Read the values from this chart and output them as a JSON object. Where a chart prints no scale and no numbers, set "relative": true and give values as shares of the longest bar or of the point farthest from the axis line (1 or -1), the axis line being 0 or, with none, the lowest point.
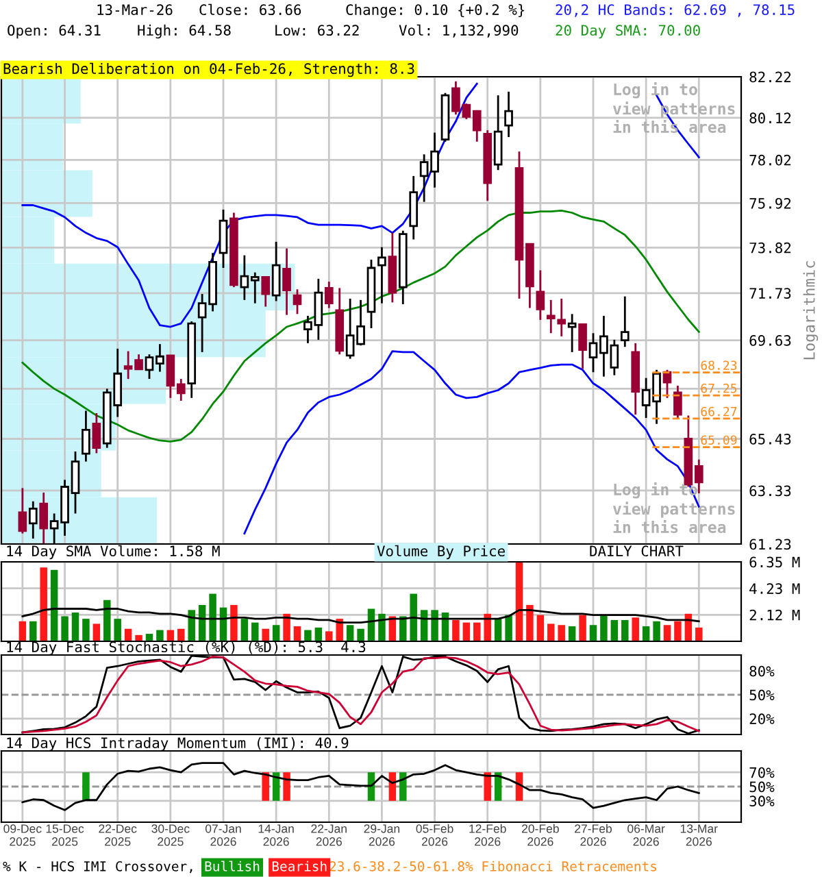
{
  "chart_data": [
    {
      "type": "candlestick",
      "title": "Bearish Deliberation on 04-Feb-26, Strength: 8.3",
      "ylabel": "Logarithmic",
      "log": true,
      "grid": true,
      "tick_labels": "y",
      "annotations": [
        "13-Mar-26",
        "Close: 63.66",
        "Change: 0.10 {+0.2 %}",
        "Open: 64.31",
        "High: 64.58",
        "Low: 63.22",
        "Vol: 1,132,990",
        "20,2 HC Bands: 62.69 , 78.15",
        "20 Day SMA: 70.00",
        "Log in to\nview patterns\nin this area",
        "Log in to\nview patterns\nin this area",
        "Volume By Price"
      ],
      "categories": [
        null,
        null,
        null,
        null,
        null,
        null,
        null,
        null,
        null,
        null,
        null,
        null,
        null,
        null,
        null,
        null,
        null,
        null,
        null,
        null,
        null,
        null,
        null,
        null,
        null,
        null,
        null,
        null,
        null,
        null,
        null,
        null,
        null,
        null,
        null,
        null,
        null,
        null,
        null,
        null,
        null,
        null,
        null,
        null,
        null,
        null,
        null,
        null,
        null,
        null,
        null,
        null,
        null,
        null,
        null,
        null,
        null,
        null,
        null,
        null,
        null,
        null,
        null,
        null,
        null
      ],
      "ylim": [
        61.23,
        82.22
      ],
      "yticks": [
        61.23,
        63.33,
        65.43,
        {
          "value": 67.53,
          "label": null
        },
        69.63,
        71.73,
        73.82,
        75.92,
        78.02,
        80.12,
        82.22
      ],
      "ohlc": [
        [
          62.46,
          63.43,
          61.64,
          61.74
        ],
        [
          62.03,
          62.9,
          61.44,
          62.61
        ],
        [
          62.81,
          63.25,
          61.25,
          61.84
        ],
        [
          61.84,
          62.42,
          61.25,
          62.12
        ],
        [
          62.07,
          63.76,
          61.55,
          63.48
        ],
        [
          63.23,
          64.91,
          62.42,
          64.5
        ],
        [
          64.82,
          66.6,
          64.5,
          65.8
        ],
        [
          66.06,
          66.5,
          64.84,
          65.06
        ],
        [
          65.24,
          67.53,
          65.06,
          67.37
        ],
        [
          66.83,
          69.26,
          66.34,
          68.18
        ],
        [
          68.49,
          69.15,
          67.95,
          68.39
        ],
        [
          68.76,
          69.01,
          68.34,
          68.37
        ],
        [
          68.34,
          69.01,
          67.95,
          68.88
        ],
        [
          68.61,
          69.46,
          68.26,
          68.92
        ],
        [
          68.96,
          68.96,
          67.14,
          67.66
        ],
        [
          67.72,
          67.95,
          67.02,
          67.34
        ],
        [
          67.76,
          70.46,
          67.14,
          70.37
        ],
        [
          70.64,
          71.69,
          69.11,
          71.27
        ],
        [
          71.23,
          73.57,
          70.91,
          73.15
        ],
        [
          73.57,
          75.61,
          72.88,
          75.08
        ],
        [
          75.19,
          75.46,
          72.0,
          72.1
        ],
        [
          72.0,
          73.46,
          71.42,
          72.5
        ],
        [
          72.31,
          72.67,
          71.27,
          72.46
        ],
        [
          72.46,
          72.46,
          71.12,
          71.69
        ],
        [
          71.63,
          74.09,
          71.37,
          73.0
        ],
        [
          72.84,
          73.78,
          70.75,
          71.86
        ],
        [
          71.63,
          71.9,
          70.79,
          71.23
        ],
        [
          70.11,
          70.71,
          69.5,
          70.43
        ],
        [
          70.3,
          72.38,
          69.65,
          71.75
        ],
        [
          71.96,
          72.25,
          71.06,
          71.27
        ],
        [
          70.96,
          71.96,
          69.01,
          69.17
        ],
        [
          68.96,
          71.48,
          68.82,
          69.84
        ],
        [
          69.46,
          71.42,
          69.4,
          70.24
        ],
        [
          70.89,
          73.26,
          70.16,
          72.88
        ],
        [
          73.0,
          73.84,
          71.27,
          73.36
        ],
        [
          73.4,
          74.51,
          71.31,
          71.75
        ],
        [
          72.0,
          74.61,
          71.23,
          74.45
        ],
        [
          74.83,
          77.23,
          74.2,
          76.44
        ],
        [
          77.23,
          78.29,
          75.98,
          77.91
        ],
        [
          77.45,
          79.37,
          76.67,
          78.43
        ],
        [
          79.03,
          81.38,
          78.92,
          81.26
        ],
        [
          81.62,
          81.98,
          80.28,
          80.46
        ],
        [
          80.77,
          80.84,
          80.05,
          80.17
        ],
        [
          80.46,
          80.5,
          78.92,
          79.49
        ],
        [
          79.31,
          79.49,
          76.03,
          76.89
        ],
        [
          77.79,
          81.26,
          77.52,
          79.42
        ],
        [
          79.73,
          81.45,
          79.15,
          80.46
        ],
        [
          77.61,
          78.43,
          71.48,
          73.26
        ],
        [
          73.99,
          73.99,
          71.06,
          72.04
        ],
        [
          71.79,
          72.77,
          70.53,
          71.0
        ],
        [
          70.71,
          71.42,
          69.94,
          70.6
        ],
        [
          70.53,
          71.48,
          69.8,
          70.37
        ],
        [
          70.22,
          70.79,
          69.11,
          70.37
        ],
        [
          70.33,
          70.33,
          68.38,
          69.21
        ],
        [
          68.88,
          69.94,
          68.24,
          69.5
        ],
        [
          69.07,
          70.71,
          68.05,
          69.8
        ],
        [
          68.44,
          69.65,
          68.11,
          69.4
        ],
        [
          69.63,
          71.58,
          69.34,
          69.99
        ],
        [
          69.11,
          69.5,
          66.44,
          67.41
        ],
        [
          66.83,
          67.99,
          66.3,
          67.47
        ],
        [
          66.99,
          68.34,
          66.05,
          68.18
        ],
        [
          68.24,
          68.34,
          67.14,
          67.8
        ],
        [
          67.37,
          67.66,
          66.3,
          66.44
        ],
        [
          65.43,
          66.4,
          63.48,
          63.57
        ],
        [
          64.31,
          64.58,
          63.22,
          63.66
        ]
      ],
      "series": [
        {
          "type": "line",
          "color": "#0000ff",
          "values": [
            75.82,
            75.82,
            75.67,
            75.52,
            75.25,
            74.83,
            74.51,
            74.26,
            74.13,
            73.84,
            73.05,
            72.31,
            71.06,
            70.29,
            70.22,
            70.37,
            71.06,
            72.21,
            73.36,
            74.51,
            75.1,
            75.23,
            75.29,
            75.35,
            75.35,
            75.31,
            75.25,
            74.98,
            74.89,
            74.89,
            74.89,
            74.87,
            74.85,
            74.72,
            74.83,
            74.51,
            74.93,
            75.67,
            76.66,
            77.91,
            79.04,
            79.94,
            81.14,
            81.86,
            null,
            null,
            null,
            null,
            null,
            null,
            null,
            null,
            null,
            null,
            null,
            null,
            null,
            null,
            null,
            null,
            81.26,
            80.29,
            79.49,
            78.81,
            78.15
          ]
        },
        {
          "type": "line",
          "color": "#0000ff",
          "values": [
            null,
            null,
            null,
            null,
            null,
            null,
            null,
            null,
            null,
            null,
            null,
            null,
            null,
            null,
            null,
            null,
            null,
            null,
            null,
            null,
            null,
            61.64,
            62.57,
            63.43,
            64.41,
            65.28,
            65.8,
            66.52,
            66.95,
            67.18,
            67.28,
            67.45,
            67.7,
            67.95,
            68.38,
            69.15,
            69.11,
            69.11,
            68.72,
            68.34,
            67.76,
            67.28,
            67.14,
            67.18,
            67.34,
            67.47,
            67.76,
            68.24,
            68.34,
            68.43,
            68.53,
            68.57,
            68.57,
            68.34,
            67.76,
            67.47,
            67.08,
            66.69,
            66.3,
            65.8,
            64.97,
            64.59,
            64.31,
            63.66,
            62.69
          ]
        },
        {
          "type": "line",
          "color": "#008800",
          "values": [
            68.65,
            68.24,
            67.86,
            67.53,
            67.28,
            66.99,
            66.69,
            66.4,
            66.21,
            66.02,
            65.78,
            65.62,
            65.47,
            65.36,
            65.32,
            65.39,
            65.71,
            66.25,
            66.89,
            67.41,
            68.09,
            68.72,
            69.11,
            69.5,
            69.84,
            70.22,
            70.37,
            70.54,
            70.75,
            70.81,
            70.89,
            71.0,
            71.12,
            71.31,
            71.58,
            71.75,
            71.96,
            72.21,
            72.42,
            72.63,
            72.94,
            73.46,
            73.88,
            74.3,
            74.62,
            75.04,
            75.35,
            75.46,
            75.46,
            75.52,
            75.52,
            75.56,
            75.46,
            75.25,
            75.14,
            75.04,
            74.72,
            74.41,
            73.88,
            73.26,
            72.52,
            71.79,
            71.16,
            70.54,
            70.0
          ]
        }
      ],
      "ref_lines": [
        {
          "axis": "y",
          "value": 68.23,
          "label": "68.23",
          "color": "#ff8c1a",
          "line_style": "dashed"
        },
        {
          "axis": "y",
          "value": 67.25,
          "label": "67.25",
          "color": "#ff8c1a",
          "line_style": "dashed"
        },
        {
          "axis": "y",
          "value": 66.27,
          "label": "66.27",
          "color": "#ff8c1a",
          "line_style": "dashed"
        },
        {
          "axis": "y",
          "value": 65.09,
          "label": "65.09",
          "color": "#ff8c1a",
          "line_style": "dashed"
        }
      ]
    },
    {
      "type": "bar",
      "orientation": "horizontal",
      "relative": true,
      "tick_labels": false,
      "color": "#c8f4fa",
      "categories": [
        null,
        null,
        null,
        null,
        null,
        null,
        null,
        null,
        null,
        null
      ],
      "values": [
        0.27,
        0.21,
        0.31,
        0.18,
        1,
        0.9,
        0.56,
        0.39,
        0.34,
        0.53
      ]
    },
    {
      "type": "bar",
      "title": "14 Day SMA Volume: 1.58 M",
      "grid": true,
      "tick_labels": "y",
      "annotations": [
        "DAILY CHART"
      ],
      "categories": [
        null,
        null,
        null,
        null,
        null,
        null,
        null,
        null,
        null,
        null,
        null,
        null,
        null,
        null,
        null,
        null,
        null,
        null,
        null,
        null,
        null,
        null,
        null,
        null,
        null,
        null,
        null,
        null,
        null,
        null,
        null,
        null,
        null,
        null,
        null,
        null,
        null,
        null,
        null,
        null,
        null,
        null,
        null,
        null,
        null,
        null,
        null,
        null,
        null,
        null,
        null,
        null,
        null,
        null,
        null,
        null,
        null,
        null,
        null,
        null,
        null,
        null,
        null,
        null,
        null
      ],
      "ylim": [
        0,
        6.35
      ],
      "yticks": [
        {
          "value": 2.12,
          "label": "2.12 M"
        },
        {
          "value": 4.23,
          "label": "4.23 M"
        },
        {
          "value": 6.35,
          "label": "6.35 M"
        }
      ],
      "series": [
        {
          "type": "bar",
          "values": [
            1.6,
            1.6,
            5.9,
            5.7,
            2.0,
            2.3,
            1.8,
            1.4,
            3.3,
            1.8,
            1.0,
            0.5,
            0.6,
            0.9,
            0.9,
            1.0,
            2.5,
            2.9,
            3.8,
            2.7,
            2.9,
            1.8,
            1.5,
            1.0,
            1.3,
            2.2,
            1.2,
            0.9,
            1.1,
            0.8,
            1.8,
            1.3,
            1.0,
            2.6,
            2.2,
            2.0,
            2.0,
            3.8,
            2.5,
            2.5,
            2.3,
            1.7,
            1.5,
            1.5,
            2.2,
            1.8,
            2.1,
            6.3,
            2.9,
            2.1,
            1.4,
            1.3,
            1.2,
            2.1,
            1.3,
            2.1,
            1.7,
            1.7,
            1.9,
            1.2,
            1.6,
            1.3,
            1.6,
            2.2,
            1.1
          ],
          "colors": [
            "#ff1a1a",
            "#0a8a0a",
            "#ff1a1a",
            "#0a8a0a",
            "#0a8a0a",
            "#0a8a0a",
            "#0a8a0a",
            "#ff1a1a",
            "#0a8a0a",
            "#0a8a0a",
            "#ff1a1a",
            "#ff1a1a",
            "#0a8a0a",
            "#0a8a0a",
            "#ff1a1a",
            "#ff1a1a",
            "#0a8a0a",
            "#0a8a0a",
            "#0a8a0a",
            "#0a8a0a",
            "#ff1a1a",
            "#0a8a0a",
            "#0a8a0a",
            "#ff1a1a",
            "#0a8a0a",
            "#ff1a1a",
            "#ff1a1a",
            "#0a8a0a",
            "#0a8a0a",
            "#ff1a1a",
            "#ff1a1a",
            "#0a8a0a",
            "#0a8a0a",
            "#0a8a0a",
            "#0a8a0a",
            "#ff1a1a",
            "#0a8a0a",
            "#0a8a0a",
            "#0a8a0a",
            "#0a8a0a",
            "#0a8a0a",
            "#ff1a1a",
            "#ff1a1a",
            "#ff1a1a",
            "#ff1a1a",
            "#0a8a0a",
            "#0a8a0a",
            "#ff1a1a",
            "#ff1a1a",
            "#ff1a1a",
            "#ff1a1a",
            "#ff1a1a",
            "#0a8a0a",
            "#ff1a1a",
            "#0a8a0a",
            "#0a8a0a",
            "#0a8a0a",
            "#0a8a0a",
            "#ff1a1a",
            "#0a8a0a",
            "#0a8a0a",
            "#ff1a1a",
            "#ff1a1a",
            "#ff1a1a",
            "#ff1a1a"
          ]
        },
        {
          "type": "line",
          "color": "#000000",
          "values": [
            2.0,
            2.2,
            2.5,
            2.6,
            2.6,
            2.6,
            2.6,
            2.5,
            2.6,
            2.6,
            2.4,
            2.3,
            2.3,
            2.2,
            2.2,
            2.1,
            1.9,
            1.8,
            1.8,
            1.8,
            1.9,
            1.9,
            1.8,
            1.8,
            1.9,
            1.9,
            1.8,
            1.8,
            1.7,
            1.7,
            1.5,
            1.5,
            1.5,
            1.6,
            1.7,
            1.8,
            1.8,
            1.9,
            1.8,
            1.8,
            1.8,
            1.8,
            1.8,
            1.8,
            1.8,
            1.8,
            2.0,
            2.5,
            2.5,
            2.4,
            2.3,
            2.2,
            2.2,
            2.2,
            2.1,
            2.1,
            2.1,
            2.1,
            2.1,
            2.0,
            1.9,
            1.7,
            1.7,
            1.7,
            1.6
          ]
        }
      ]
    },
    {
      "type": "line",
      "title": "14 Day Fast Stochastic (%K) (%D): 5.3  4.3",
      "grid": true,
      "tick_labels": "y",
      "categories": [
        null,
        null,
        null,
        null,
        null,
        null,
        null,
        null,
        null,
        null,
        null,
        null,
        null,
        null,
        null,
        null,
        null,
        null,
        null,
        null,
        null,
        null,
        null,
        null,
        null,
        null,
        null,
        null,
        null,
        null,
        null,
        null,
        null,
        null,
        null,
        null,
        null,
        null,
        null,
        null,
        null,
        null,
        null,
        null,
        null,
        null,
        null,
        null,
        null,
        null,
        null,
        null,
        null,
        null,
        null,
        null,
        null,
        null,
        null,
        null,
        null,
        null,
        null,
        null,
        null
      ],
      "ylim": [
        0,
        100
      ],
      "yticks": [
        {
          "value": 20,
          "label": "20%"
        },
        {
          "value": 50,
          "label": "50%"
        },
        {
          "value": 80,
          "label": "80%"
        }
      ],
      "ref_lines": [
        {
          "axis": "y",
          "value": 50,
          "color": "#999999",
          "line_style": "dashed"
        }
      ],
      "series": [
        {
          "color": "#000000",
          "values": [
            2.6,
            4.5,
            6.5,
            7,
            9,
            15,
            23,
            35,
            84,
            86,
            89,
            92,
            93,
            94,
            85,
            79,
            99,
            98,
            97,
            97,
            69,
            70,
            66,
            56,
            67,
            59,
            53,
            53,
            54,
            46,
            8,
            11,
            21,
            53,
            86,
            53,
            98,
            94,
            95,
            98,
            98,
            92,
            87,
            80,
            66,
            82,
            86,
            21,
            8,
            5,
            4.5,
            6,
            6.5,
            8,
            10,
            13,
            14,
            13,
            8,
            13,
            19,
            22,
            6.5,
            1.3,
            5.3
          ]
        },
        {
          "color": "#cc0033",
          "values": [
            2.6,
            3.6,
            4.5,
            6,
            7.5,
            10,
            16,
            24,
            47,
            68,
            86,
            89,
            91,
            93,
            91,
            86,
            88,
            92,
            98,
            97,
            88,
            79,
            68,
            64,
            63,
            61,
            60,
            55,
            53,
            51,
            40,
            22,
            13,
            28,
            53,
            64,
            79,
            82,
            96,
            96,
            97,
            96,
            92,
            86,
            78,
            76,
            78,
            63,
            38,
            11,
            6,
            5,
            6,
            7,
            8,
            10,
            12,
            13,
            12,
            11,
            13,
            18,
            16,
            10,
            4.3
          ]
        }
      ]
    },
    {
      "type": "line",
      "title": "14 Day HCS Intraday Momentum (IMI): 40.9",
      "grid": true,
      "legend": "bottom left",
      "legend_title": "% K - HCS IMI Crossover,",
      "annotations": [
        "23.6-38.2-50-61.8% Fibonacci Retracements"
      ],
      "categories": [
        "09-Dec\n2025",
        null,
        null,
        null,
        "15-Dec\n2025",
        null,
        null,
        null,
        null,
        "22-Dec\n2025",
        null,
        null,
        null,
        null,
        "30-Dec\n2025",
        null,
        null,
        null,
        null,
        "07-Jan\n2026",
        null,
        null,
        null,
        null,
        "14-Jan\n2026",
        null,
        null,
        null,
        null,
        "22-Jan\n2026",
        null,
        null,
        null,
        null,
        "29-Jan\n2026",
        null,
        null,
        null,
        null,
        "05-Feb\n2026",
        null,
        null,
        null,
        null,
        "12-Feb\n2026",
        null,
        null,
        null,
        null,
        "20-Feb\n2026",
        null,
        null,
        null,
        null,
        "27-Feb\n2026",
        null,
        null,
        null,
        null,
        "06-Mar\n2026",
        null,
        null,
        null,
        null,
        "13-Mar\n2026"
      ],
      "ylim": [
        0,
        100
      ],
      "yticks": [
        {
          "value": 30,
          "label": "30%"
        },
        {
          "value": 50,
          "label": "50%"
        },
        {
          "value": 70,
          "label": "70%"
        }
      ],
      "ref_lines": [
        {
          "axis": "y",
          "value": 50,
          "color": "#999999",
          "line_style": "dashed"
        }
      ],
      "series": [
        {
          "type": "bar",
          "name": "Bullish",
          "color": "#119911",
          "base": [
            null,
            null,
            null,
            null,
            null,
            null,
            30,
            null,
            null,
            null,
            null,
            null,
            null,
            null,
            null,
            null,
            null,
            null,
            null,
            null,
            null,
            null,
            null,
            null,
            30,
            null,
            null,
            null,
            null,
            null,
            null,
            null,
            null,
            30,
            null,
            null,
            30,
            null,
            null,
            null,
            null,
            null,
            null,
            null,
            null,
            30,
            null,
            null,
            null,
            null,
            null,
            null,
            null,
            null,
            null,
            null,
            null,
            null,
            null,
            null,
            null,
            null,
            null,
            null,
            null
          ],
          "values": [
            null,
            null,
            null,
            null,
            null,
            null,
            40,
            null,
            null,
            null,
            null,
            null,
            null,
            null,
            null,
            null,
            null,
            null,
            null,
            null,
            null,
            null,
            null,
            null,
            40,
            null,
            null,
            null,
            null,
            null,
            null,
            null,
            null,
            40,
            null,
            null,
            40,
            null,
            null,
            null,
            null,
            null,
            null,
            null,
            null,
            40,
            null,
            null,
            null,
            null,
            null,
            null,
            null,
            null,
            null,
            null,
            null,
            null,
            null,
            null,
            null,
            null,
            null,
            null,
            null
          ]
        },
        {
          "type": "bar",
          "name": "Bearish",
          "color": "#ff1a1a",
          "base": [
            null,
            null,
            null,
            null,
            null,
            null,
            null,
            null,
            null,
            null,
            null,
            null,
            null,
            null,
            null,
            null,
            null,
            null,
            null,
            null,
            null,
            null,
            null,
            30,
            null,
            30,
            null,
            null,
            null,
            null,
            null,
            null,
            null,
            null,
            null,
            30,
            null,
            null,
            null,
            null,
            null,
            null,
            null,
            null,
            30,
            null,
            null,
            30,
            null,
            null,
            null,
            null,
            null,
            null,
            null,
            null,
            null,
            null,
            null,
            null,
            null,
            null,
            null,
            null,
            null
          ],
          "values": [
            null,
            null,
            null,
            null,
            null,
            null,
            null,
            null,
            null,
            null,
            null,
            null,
            null,
            null,
            null,
            null,
            null,
            null,
            null,
            null,
            null,
            null,
            null,
            40,
            null,
            40,
            null,
            null,
            null,
            null,
            null,
            null,
            null,
            null,
            null,
            40,
            null,
            null,
            null,
            null,
            null,
            null,
            null,
            null,
            40,
            null,
            null,
            40,
            null,
            null,
            null,
            null,
            null,
            null,
            null,
            null,
            null,
            null,
            null,
            null,
            null,
            null,
            null,
            null,
            null
          ]
        },
        {
          "type": "line",
          "color": "#000000",
          "values": [
            28,
            32,
            31,
            23,
            17,
            27,
            31,
            31,
            53,
            68,
            72,
            71,
            75,
            77,
            73,
            70,
            81,
            83,
            83,
            83,
            67,
            72,
            69,
            67,
            63,
            60,
            59,
            59,
            63,
            65,
            53,
            52,
            51,
            51,
            65,
            55,
            60,
            67,
            68,
            73,
            80,
            73,
            70,
            67,
            65,
            65,
            60,
            53,
            45,
            45,
            41,
            39,
            35,
            32,
            20,
            23,
            27,
            31,
            33,
            35,
            31,
            47,
            50,
            45,
            40.9
          ]
        }
      ]
    }
  ]
}
